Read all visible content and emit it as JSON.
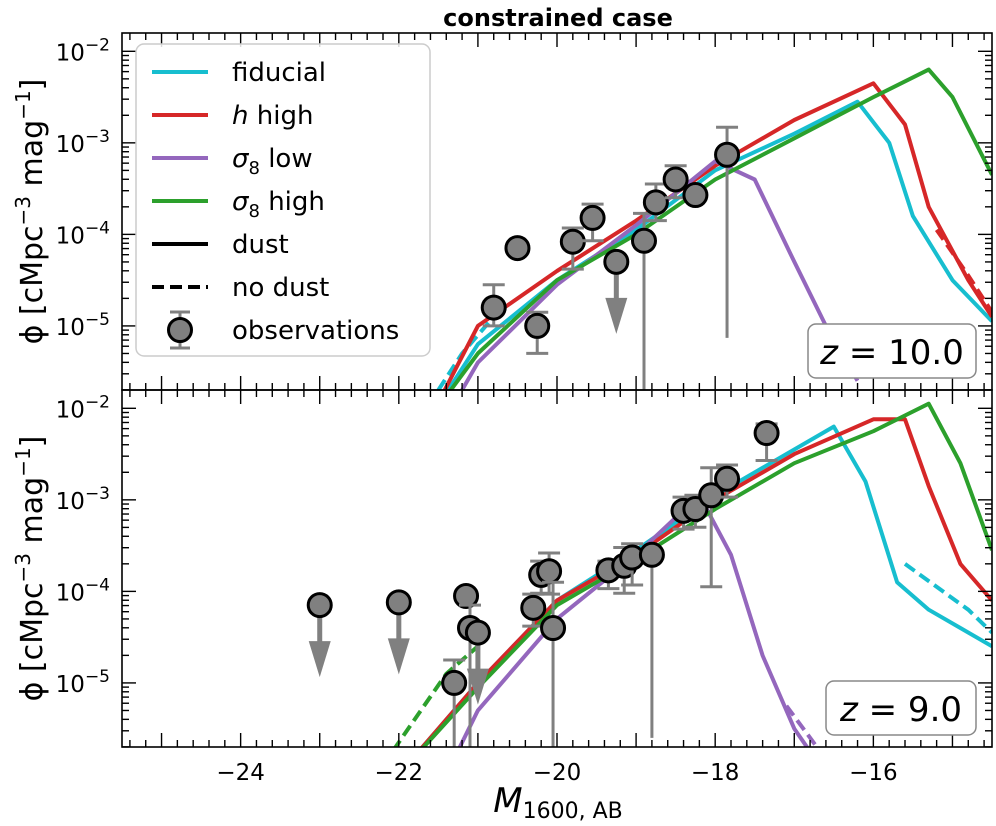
{
  "chart_data": {
    "type": "line",
    "title": "constrained case",
    "xlabel": "M",
    "xlabel_sub": "1600, AB",
    "ylabel_main": "ϕ [cMpc",
    "ylabel_sup1": "−3",
    "ylabel_mid": " mag",
    "ylabel_sup2": "−1",
    "ylabel_end": "]",
    "xlim": [
      -25.5,
      -14.5
    ],
    "ylim_log10": [
      -5.7,
      -1.8
    ],
    "xticks": [
      -24,
      -22,
      -20,
      -18,
      -16
    ],
    "xtick_labels": [
      "−24",
      "−22",
      "−20",
      "−18",
      "−16"
    ],
    "yticks_exp": [
      "−5",
      "−4",
      "−3",
      "−2"
    ],
    "colors": {
      "fiducial": "#17becf",
      "h_high": "#d62728",
      "sigma8_low": "#9467bd",
      "sigma8_high": "#2ca02c",
      "obs": "#808080"
    },
    "legend": {
      "location": "top-left",
      "entries": [
        {
          "key": "fiducial",
          "label": "fiducial",
          "style": "line",
          "color": "#17becf"
        },
        {
          "key": "h_high",
          "label": " high",
          "italic_prefix": "h",
          "style": "line",
          "color": "#d62728"
        },
        {
          "key": "sigma8_low",
          "label": " low",
          "italic_prefix": "σ",
          "sub": "8",
          "style": "line",
          "color": "#9467bd"
        },
        {
          "key": "sigma8_high",
          "label": " high",
          "italic_prefix": "σ",
          "sub": "8",
          "style": "line",
          "color": "#2ca02c"
        },
        {
          "key": "dust",
          "label": "dust",
          "style": "solid",
          "color": "#000000"
        },
        {
          "key": "nodust",
          "label": "no dust",
          "style": "dashed",
          "color": "#000000"
        },
        {
          "key": "obs",
          "label": "observations",
          "style": "marker",
          "color": "#808080"
        }
      ]
    },
    "panels": [
      {
        "redshift_label": "z = 10.0",
        "z_italic": "z",
        "z_value": " = 10.0",
        "series": [
          {
            "name": "fiducial",
            "color": "#17becf",
            "x": [
              -21.6,
              -21.0,
              -20.0,
              -19.0,
              -18.0,
              -17.0,
              -16.2,
              -15.8,
              -15.5,
              -15.0,
              -14.5
            ],
            "log_phi": [
              -6.0,
              -5.2,
              -4.5,
              -3.95,
              -3.3,
              -2.9,
              -2.55,
              -3.0,
              -3.8,
              -4.5,
              -4.95
            ]
          },
          {
            "name": "h_high",
            "color": "#d62728",
            "x": [
              -21.6,
              -21.0,
              -20.0,
              -19.0,
              -18.0,
              -17.0,
              -16.0,
              -15.6,
              -15.3,
              -14.8,
              -14.5
            ],
            "log_phi": [
              -6.0,
              -5.0,
              -4.4,
              -3.85,
              -3.25,
              -2.75,
              -2.35,
              -2.8,
              -3.7,
              -4.5,
              -4.9
            ]
          },
          {
            "name": "sigma8_low",
            "color": "#9467bd",
            "x": [
              -21.4,
              -21.0,
              -20.0,
              -19.0,
              -18.0,
              -17.5,
              -17.0,
              -16.6,
              -16.2
            ],
            "log_phi": [
              -6.0,
              -5.4,
              -4.55,
              -3.9,
              -3.2,
              -3.4,
              -4.3,
              -5.0,
              -5.6
            ]
          },
          {
            "name": "sigma8_high",
            "color": "#2ca02c",
            "x": [
              -21.6,
              -21.0,
              -20.0,
              -19.0,
              -18.0,
              -17.0,
              -16.0,
              -15.3,
              -15.0,
              -14.5
            ],
            "log_phi": [
              -6.0,
              -5.3,
              -4.5,
              -4.0,
              -3.4,
              -2.95,
              -2.5,
              -2.2,
              -2.5,
              -3.35
            ]
          }
        ],
        "dashed_series": [
          {
            "name": "h_high_nodust",
            "color": "#d62728",
            "x": [
              -15.2,
              -14.8,
              -14.5
            ],
            "log_phi": [
              -3.95,
              -4.45,
              -4.85
            ]
          },
          {
            "name": "fiducial_nodust",
            "color": "#17becf",
            "x": [
              -21.5,
              -21.2,
              -20.8
            ],
            "log_phi": [
              -5.7,
              -5.3,
              -4.9
            ]
          }
        ],
        "observations": [
          {
            "x": -20.8,
            "log_phi": -4.8,
            "err_lo": 0.2,
            "err_hi": 0.25
          },
          {
            "x": -20.5,
            "log_phi": -4.15,
            "err_lo": 0.0,
            "err_hi": 0.0
          },
          {
            "x": -20.25,
            "log_phi": -5.0,
            "err_lo": 0.3,
            "err_hi": 0.15
          },
          {
            "x": -19.8,
            "log_phi": -4.08,
            "err_lo": 0.3,
            "err_hi": 0.15
          },
          {
            "x": -19.55,
            "log_phi": -3.82,
            "err_lo": 0.25,
            "err_hi": 0.15
          },
          {
            "x": -19.25,
            "log_phi": -4.3,
            "upper_limit": true
          },
          {
            "x": -18.9,
            "log_phi": -4.07,
            "err_lo": 2.0,
            "err_hi": 0.3
          },
          {
            "x": -18.75,
            "log_phi": -3.65,
            "err_lo": 0.2,
            "err_hi": 0.2
          },
          {
            "x": -18.5,
            "log_phi": -3.4,
            "err_lo": 0.2,
            "err_hi": 0.15
          },
          {
            "x": -18.25,
            "log_phi": -3.57,
            "err_lo": 0.0,
            "err_hi": 0.0
          },
          {
            "x": -17.85,
            "log_phi": -3.13,
            "err_lo": 2.0,
            "err_hi": 0.3
          }
        ]
      },
      {
        "redshift_label": "z = 9.0",
        "z_italic": "z",
        "z_value": " = 9.0",
        "series": [
          {
            "name": "fiducial",
            "color": "#17becf",
            "x": [
              -22.0,
              -21.0,
              -20.0,
              -19.0,
              -18.0,
              -17.0,
              -16.5,
              -16.1,
              -15.7,
              -15.3,
              -14.9,
              -14.5
            ],
            "log_phi": [
              -6.0,
              -5.0,
              -4.1,
              -3.55,
              -2.95,
              -2.45,
              -2.2,
              -2.8,
              -3.9,
              -4.2,
              -4.4,
              -4.6
            ]
          },
          {
            "name": "h_high",
            "color": "#d62728",
            "x": [
              -22.0,
              -21.0,
              -20.0,
              -19.0,
              -18.0,
              -17.0,
              -16.0,
              -15.6,
              -15.3,
              -14.9,
              -14.5
            ],
            "log_phi": [
              -6.0,
              -5.0,
              -4.1,
              -3.6,
              -3.0,
              -2.5,
              -2.12,
              -2.12,
              -2.85,
              -3.7,
              -4.1
            ]
          },
          {
            "name": "sigma8_low",
            "color": "#9467bd",
            "x": [
              -21.4,
              -21.0,
              -20.0,
              -19.0,
              -18.2,
              -17.8,
              -17.4,
              -17.0,
              -16.6
            ],
            "log_phi": [
              -6.0,
              -5.3,
              -4.3,
              -3.6,
              -2.95,
              -3.6,
              -4.7,
              -5.5,
              -6.0
            ]
          },
          {
            "name": "sigma8_high",
            "color": "#2ca02c",
            "x": [
              -22.0,
              -21.0,
              -20.0,
              -19.0,
              -18.0,
              -17.0,
              -16.0,
              -15.3,
              -14.9,
              -14.5
            ],
            "log_phi": [
              -6.0,
              -5.05,
              -4.15,
              -3.65,
              -3.1,
              -2.6,
              -2.25,
              -1.95,
              -2.6,
              -3.55
            ]
          }
        ],
        "dashed_series": [
          {
            "name": "sigma8_high_nodust",
            "color": "#2ca02c",
            "x": [
              -22.2,
              -21.8,
              -21.4,
              -21.0
            ],
            "log_phi": [
              -5.9,
              -5.4,
              -4.9,
              -4.6
            ]
          },
          {
            "name": "fiducial_nodust",
            "color": "#17becf",
            "x": [
              -15.6,
              -15.2,
              -14.8,
              -14.5
            ],
            "log_phi": [
              -3.7,
              -3.95,
              -4.2,
              -4.45
            ]
          },
          {
            "name": "sigma8_low_nodust",
            "color": "#9467bd",
            "x": [
              -17.1,
              -16.8,
              -16.5
            ],
            "log_phi": [
              -5.25,
              -5.6,
              -5.95
            ]
          }
        ],
        "observations": [
          {
            "x": -23.0,
            "log_phi": -4.15,
            "upper_limit": true
          },
          {
            "x": -22.0,
            "log_phi": -4.12,
            "upper_limit": true
          },
          {
            "x": -21.15,
            "log_phi": -4.05,
            "err_lo": 0.0,
            "err_hi": 0.0
          },
          {
            "x": -21.1,
            "log_phi": -4.4,
            "err_lo": 2.0,
            "err_hi": 0.25
          },
          {
            "x": -21.0,
            "log_phi": -4.45,
            "upper_limit": true
          },
          {
            "x": -21.3,
            "log_phi": -5.0,
            "err_lo": 2.0,
            "err_hi": 0.25
          },
          {
            "x": -20.3,
            "log_phi": -4.18,
            "err_lo": 0.2,
            "err_hi": 0.15
          },
          {
            "x": -20.2,
            "log_phi": -3.82,
            "err_lo": 0.2,
            "err_hi": 0.15
          },
          {
            "x": -20.1,
            "log_phi": -3.78,
            "err_lo": 0.25,
            "err_hi": 0.2
          },
          {
            "x": -20.05,
            "log_phi": -4.4,
            "err_lo": 2.0,
            "err_hi": 0.5
          },
          {
            "x": -19.35,
            "log_phi": -3.77,
            "err_lo": 0.2,
            "err_hi": 0.1
          },
          {
            "x": -19.15,
            "log_phi": -3.72,
            "err_lo": 0.3,
            "err_hi": 0.2
          },
          {
            "x": -19.05,
            "log_phi": -3.63,
            "err_lo": 0.3,
            "err_hi": 0.15
          },
          {
            "x": -18.8,
            "log_phi": -3.6,
            "err_lo": 2.0,
            "err_hi": 0.0
          },
          {
            "x": -18.4,
            "log_phi": -3.12,
            "err_lo": 0.2,
            "err_hi": 0.15
          },
          {
            "x": -18.25,
            "log_phi": -3.1,
            "err_lo": 0.2,
            "err_hi": 0.15
          },
          {
            "x": -18.05,
            "log_phi": -2.95,
            "err_lo": 1.0,
            "err_hi": 0.3
          },
          {
            "x": -17.85,
            "log_phi": -2.77,
            "err_lo": 0.2,
            "err_hi": 0.15
          },
          {
            "x": -17.35,
            "log_phi": -2.27,
            "err_lo": 0.3,
            "err_hi": 0.1
          }
        ]
      }
    ]
  }
}
